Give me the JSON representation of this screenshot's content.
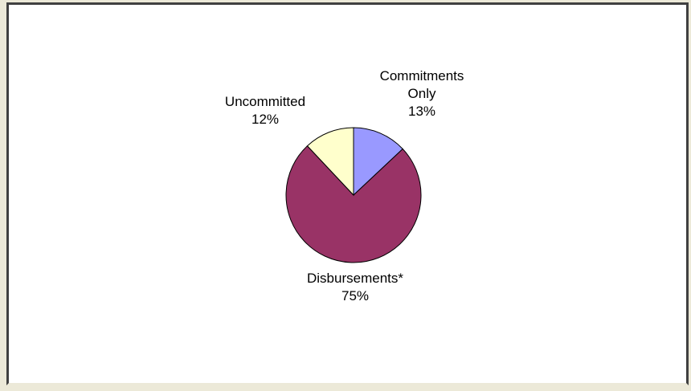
{
  "chart_data": {
    "type": "pie",
    "title": "",
    "slices": [
      {
        "label_lines": [
          "Commitments",
          "Only"
        ],
        "percent_label": "13%",
        "value": 13,
        "color": "#9999ff"
      },
      {
        "label_lines": [
          "Disbursements*"
        ],
        "percent_label": "75%",
        "value": 75,
        "color": "#993366"
      },
      {
        "label_lines": [
          "Uncommitted"
        ],
        "percent_label": "12%",
        "value": 12,
        "color": "#ffffcc"
      }
    ],
    "start_angle_deg": 0,
    "direction": "clockwise"
  }
}
